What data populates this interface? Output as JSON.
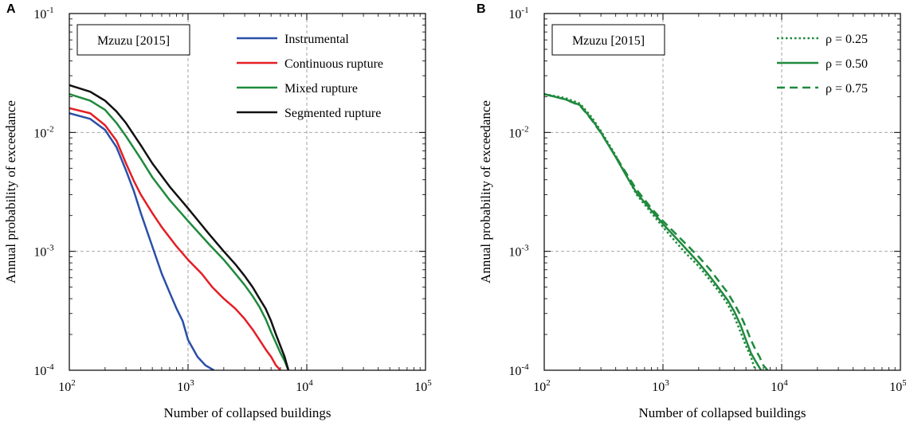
{
  "chart_data": [
    {
      "type": "line",
      "panel_label": "A",
      "title": "Mzuzu [2015]",
      "xlabel": "Number of collapsed buildings",
      "ylabel": "Annual probability of exceedance",
      "xscale": "log",
      "yscale": "log",
      "xlim": [
        100,
        100000
      ],
      "ylim": [
        0.0001,
        0.1
      ],
      "grid": true,
      "x_ticks": [
        {
          "value": 100,
          "base": "10",
          "exp": "2"
        },
        {
          "value": 1000,
          "base": "10",
          "exp": "3"
        },
        {
          "value": 10000,
          "base": "10",
          "exp": "4"
        },
        {
          "value": 100000,
          "base": "10",
          "exp": "5"
        }
      ],
      "y_ticks": [
        {
          "value": 0.0001,
          "base": "10",
          "exp": "-4"
        },
        {
          "value": 0.001,
          "base": "10",
          "exp": "-3"
        },
        {
          "value": 0.01,
          "base": "10",
          "exp": "-2"
        },
        {
          "value": 0.1,
          "base": "10",
          "exp": "-1"
        }
      ],
      "legend_position": "top-right",
      "series": [
        {
          "name": "Instrumental",
          "color": "#2b4fa8",
          "dash": "solid",
          "points": [
            [
              100,
              0.0145
            ],
            [
              150,
              0.013
            ],
            [
              200,
              0.0105
            ],
            [
              250,
              0.0075
            ],
            [
              300,
              0.0048
            ],
            [
              350,
              0.0032
            ],
            [
              400,
              0.0021
            ],
            [
              500,
              0.0011
            ],
            [
              600,
              0.00065
            ],
            [
              700,
              0.00045
            ],
            [
              800,
              0.00033
            ],
            [
              900,
              0.00026
            ],
            [
              1000,
              0.00018
            ],
            [
              1200,
              0.00013
            ],
            [
              1400,
              0.00011
            ],
            [
              1650,
              0.0001
            ]
          ]
        },
        {
          "name": "Continuous rupture",
          "color": "#e51e25",
          "dash": "solid",
          "points": [
            [
              100,
              0.016
            ],
            [
              150,
              0.0145
            ],
            [
              200,
              0.0115
            ],
            [
              250,
              0.0085
            ],
            [
              300,
              0.0055
            ],
            [
              350,
              0.0039
            ],
            [
              400,
              0.003
            ],
            [
              500,
              0.0021
            ],
            [
              600,
              0.0016
            ],
            [
              800,
              0.0011
            ],
            [
              1000,
              0.00085
            ],
            [
              1300,
              0.00065
            ],
            [
              1600,
              0.0005
            ],
            [
              2000,
              0.0004
            ],
            [
              2500,
              0.00033
            ],
            [
              3000,
              0.00027
            ],
            [
              3500,
              0.00022
            ],
            [
              4000,
              0.00018
            ],
            [
              4500,
              0.00015
            ],
            [
              5000,
              0.00013
            ],
            [
              5500,
              0.00011
            ],
            [
              6000,
              0.0001
            ]
          ]
        },
        {
          "name": "Mixed rupture",
          "color": "#1f8a3d",
          "dash": "solid",
          "points": [
            [
              100,
              0.021
            ],
            [
              150,
              0.0185
            ],
            [
              200,
              0.0155
            ],
            [
              250,
              0.012
            ],
            [
              300,
              0.0093
            ],
            [
              400,
              0.006
            ],
            [
              500,
              0.0042
            ],
            [
              700,
              0.0027
            ],
            [
              1000,
              0.0018
            ],
            [
              1500,
              0.00115
            ],
            [
              2000,
              0.00085
            ],
            [
              2500,
              0.00065
            ],
            [
              3000,
              0.00052
            ],
            [
              3500,
              0.00042
            ],
            [
              4000,
              0.00034
            ],
            [
              4500,
              0.00027
            ],
            [
              5000,
              0.00021
            ],
            [
              5500,
              0.00017
            ],
            [
              6000,
              0.00014
            ],
            [
              6500,
              0.00012
            ],
            [
              7000,
              0.0001
            ]
          ]
        },
        {
          "name": "Segmented rupture",
          "color": "#111111",
          "dash": "solid",
          "points": [
            [
              100,
              0.025
            ],
            [
              150,
              0.022
            ],
            [
              200,
              0.0185
            ],
            [
              250,
              0.015
            ],
            [
              300,
              0.012
            ],
            [
              400,
              0.0078
            ],
            [
              500,
              0.0055
            ],
            [
              700,
              0.0035
            ],
            [
              1000,
              0.0023
            ],
            [
              1500,
              0.0014
            ],
            [
              2000,
              0.001
            ],
            [
              2500,
              0.00078
            ],
            [
              3000,
              0.00062
            ],
            [
              3500,
              0.0005
            ],
            [
              4000,
              0.0004
            ],
            [
              4500,
              0.00033
            ],
            [
              5000,
              0.00026
            ],
            [
              5500,
              0.0002
            ],
            [
              6000,
              0.00016
            ],
            [
              6500,
              0.00013
            ],
            [
              7000,
              0.0001
            ]
          ]
        }
      ]
    },
    {
      "type": "line",
      "panel_label": "B",
      "title": "Mzuzu [2015]",
      "xlabel": "Number of collapsed buildings",
      "ylabel": "Annual probability of exceedance",
      "xscale": "log",
      "yscale": "log",
      "xlim": [
        100,
        100000
      ],
      "ylim": [
        0.0001,
        0.1
      ],
      "grid": true,
      "x_ticks": [
        {
          "value": 100,
          "base": "10",
          "exp": "2"
        },
        {
          "value": 1000,
          "base": "10",
          "exp": "3"
        },
        {
          "value": 10000,
          "base": "10",
          "exp": "4"
        },
        {
          "value": 100000,
          "base": "10",
          "exp": "5"
        }
      ],
      "y_ticks": [
        {
          "value": 0.0001,
          "base": "10",
          "exp": "-4"
        },
        {
          "value": 0.001,
          "base": "10",
          "exp": "-3"
        },
        {
          "value": 0.01,
          "base": "10",
          "exp": "-2"
        },
        {
          "value": 0.1,
          "base": "10",
          "exp": "-1"
        }
      ],
      "legend_position": "top-right",
      "series": [
        {
          "name": "ρ = 0.25",
          "color": "#1f8a3d",
          "dash": "dotted",
          "points": [
            [
              100,
              0.021
            ],
            [
              150,
              0.0195
            ],
            [
              200,
              0.0175
            ],
            [
              250,
              0.0135
            ],
            [
              300,
              0.0103
            ],
            [
              400,
              0.0064
            ],
            [
              500,
              0.0042
            ],
            [
              600,
              0.003
            ],
            [
              800,
              0.0021
            ],
            [
              1000,
              0.0016
            ],
            [
              1500,
              0.001
            ],
            [
              2000,
              0.00075
            ],
            [
              2500,
              0.00057
            ],
            [
              3000,
              0.00045
            ],
            [
              3500,
              0.00036
            ],
            [
              4000,
              0.00028
            ],
            [
              4500,
              0.00021
            ],
            [
              5000,
              0.00016
            ],
            [
              5500,
              0.00013
            ],
            [
              6000,
              0.0001
            ]
          ]
        },
        {
          "name": "ρ = 0.50",
          "color": "#1f8a3d",
          "dash": "solid",
          "points": [
            [
              100,
              0.021
            ],
            [
              150,
              0.019
            ],
            [
              200,
              0.017
            ],
            [
              250,
              0.013
            ],
            [
              300,
              0.01
            ],
            [
              400,
              0.0062
            ],
            [
              500,
              0.0042
            ],
            [
              600,
              0.0031
            ],
            [
              800,
              0.0022
            ],
            [
              1000,
              0.0017
            ],
            [
              1500,
              0.0011
            ],
            [
              2000,
              0.0008
            ],
            [
              2500,
              0.00061
            ],
            [
              3000,
              0.00048
            ],
            [
              3500,
              0.00039
            ],
            [
              4000,
              0.00031
            ],
            [
              4500,
              0.00024
            ],
            [
              5000,
              0.00018
            ],
            [
              5500,
              0.00014
            ],
            [
              6000,
              0.00012
            ],
            [
              6700,
              0.0001
            ]
          ]
        },
        {
          "name": "ρ = 0.75",
          "color": "#1f8a3d",
          "dash": "dashed",
          "points": [
            [
              100,
              0.021
            ],
            [
              150,
              0.019
            ],
            [
              200,
              0.0168
            ],
            [
              250,
              0.0128
            ],
            [
              300,
              0.0099
            ],
            [
              400,
              0.0063
            ],
            [
              500,
              0.0044
            ],
            [
              600,
              0.0033
            ],
            [
              800,
              0.0023
            ],
            [
              1000,
              0.0018
            ],
            [
              1500,
              0.0012
            ],
            [
              2000,
              0.0009
            ],
            [
              2500,
              0.0007
            ],
            [
              3000,
              0.00055
            ],
            [
              3500,
              0.00045
            ],
            [
              4000,
              0.00036
            ],
            [
              4500,
              0.00029
            ],
            [
              5000,
              0.00023
            ],
            [
              5500,
              0.00018
            ],
            [
              6000,
              0.00015
            ],
            [
              6500,
              0.00013
            ],
            [
              7000,
              0.00011
            ],
            [
              7600,
              0.0001
            ]
          ]
        }
      ]
    }
  ]
}
